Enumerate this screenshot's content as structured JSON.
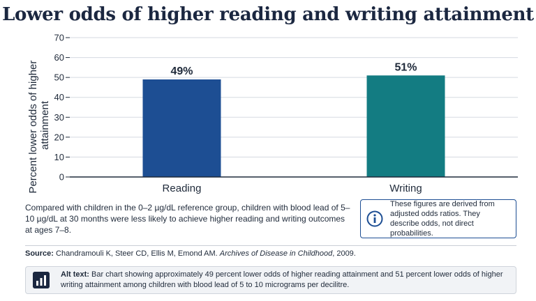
{
  "title": "Lower odds of higher reading and writing attainment",
  "chart_data": {
    "type": "bar",
    "categories": [
      "Reading",
      "Writing"
    ],
    "values": [
      49,
      51
    ],
    "data_labels": [
      "49%",
      "51%"
    ],
    "colors": [
      "#1d4e93",
      "#137c82"
    ],
    "ylabel": "Percent lower odds of higher attainment",
    "ylim": [
      0,
      70
    ],
    "yticks": [
      0,
      10,
      20,
      30,
      40,
      50,
      60,
      70
    ],
    "grid": true
  },
  "description": "Compared with children in the 0–2 µg/dL reference group, children with blood lead of 5–10 µg/dL at 30 months were less likely to achieve higher reading and writing outcomes at ages 7–8.",
  "note": {
    "icon": "info-icon",
    "text": "These figures are derived from adjusted odds ratios. They describe odds, not direct probabilities."
  },
  "source": {
    "label": "Source:",
    "authors": "Chandramouli K, Steer CD, Ellis M, Emond AM.",
    "journal": "Archives of Disease in Childhood",
    "year": ", 2009."
  },
  "alt_text": {
    "icon": "bar-chart-icon",
    "label": "Alt text:",
    "text": "Bar chart showing approximately 49 percent lower odds of higher reading attainment and 51 percent lower odds of higher writing attainment among children with blood lead of 5 to 10 micrograms per decilitre."
  }
}
